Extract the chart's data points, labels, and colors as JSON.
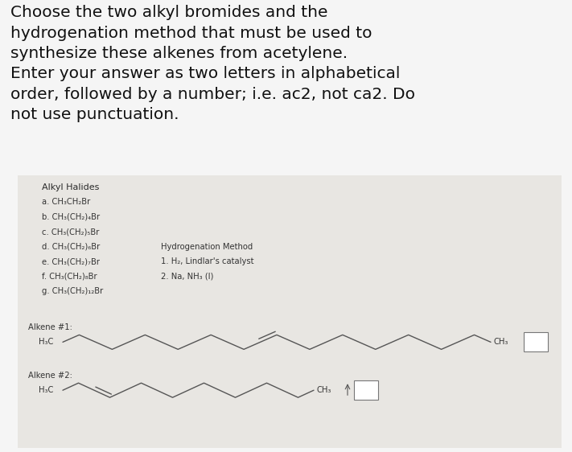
{
  "title_text": "Choose the two alkyl bromides and the\nhydrogenation method that must be used to\nsynthesize these alkenes from acetylene.\nEnter your answer as two letters in alphabetical\norder, followed by a number; i.e. ac2, not ca2. Do\nnot use punctuation.",
  "title_fontsize": 14.5,
  "title_color": "#111111",
  "background_color": "#f5f5f5",
  "card_color": "#e8e6e2",
  "alkyl_halides_header": "Alkyl Halides",
  "alkyl_halides": [
    "a. CH₃CH₂Br",
    "b. CH₃(CH₂)₄Br",
    "c. CH₃(CH₂)₅Br",
    "d. CH₃(CH₂)₆Br",
    "e. CH₃(CH₂)₇Br",
    "f. CH₃(CH₂)₈Br",
    "g. CH₃(CH₂)₁₂Br"
  ],
  "hydro_header": "Hydrogenation Method",
  "hydro_methods": [
    "1. H₂, Lindlar's catalyst",
    "2. Na, NH₃ (l)"
  ],
  "alkene1_label": "Alkene #1:",
  "alkene2_label": "Alkene #2:",
  "alkene1_h3c": "H₃C",
  "alkene1_ch3": "CH₃",
  "alkene2_h3c": "H₃C",
  "alkene2_ch3": "CH₃",
  "text_fontsize": 8.0,
  "small_fontsize": 7.2
}
